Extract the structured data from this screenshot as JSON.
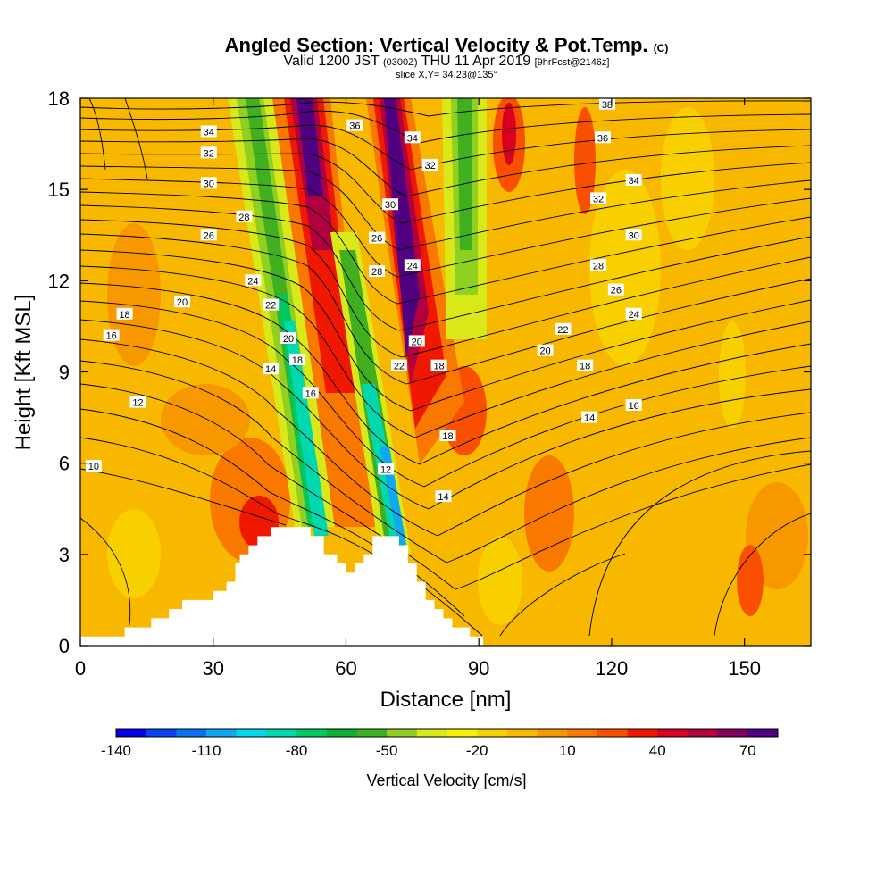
{
  "header": {
    "title_main": "Angled Section: Vertical Velocity & Pot.Temp.",
    "title_suffix": "(C)",
    "subtitle_a": "Valid 1200 JST",
    "subtitle_b": "(0300Z)",
    "subtitle_c": "THU 11 Apr 2019",
    "subtitle_d": "[9hrFcst@2146z]",
    "subtitle2": "slice X,Y= 34,23@135°"
  },
  "chart_data": {
    "type": "heatmap",
    "xlabel": "Distance [nm]",
    "ylabel": "Height [Kft MSL]",
    "xlim": [
      0,
      165
    ],
    "ylim": [
      0,
      18
    ],
    "x_ticks": [
      0,
      30,
      60,
      90,
      120,
      150
    ],
    "y_ticks": [
      0,
      3,
      6,
      9,
      12,
      15,
      18
    ],
    "colorbar": {
      "label": "Vertical Velocity [cm/s]",
      "tick_labels": [
        "-140",
        "-110",
        "-80",
        "-50",
        "-20",
        "10",
        "40",
        "70"
      ],
      "colors": [
        "#0000e8",
        "#0a40f0",
        "#0a70f5",
        "#10a8f0",
        "#00d8e8",
        "#00d8b0",
        "#00c860",
        "#10b030",
        "#40b020",
        "#90d020",
        "#d8e818",
        "#f8f000",
        "#f8d000",
        "#f8b800",
        "#f89800",
        "#f87800",
        "#f85000",
        "#f01800",
        "#d80020",
        "#b00040",
        "#800060",
        "#500080"
      ]
    },
    "contour_labels": [
      {
        "value": "34",
        "x": 29,
        "y": 16.9
      },
      {
        "value": "32",
        "x": 29,
        "y": 16.2
      },
      {
        "value": "30",
        "x": 29,
        "y": 15.2
      },
      {
        "value": "28",
        "x": 37,
        "y": 14.1
      },
      {
        "value": "26",
        "x": 29,
        "y": 13.5
      },
      {
        "value": "24",
        "x": 39,
        "y": 12.0
      },
      {
        "value": "22",
        "x": 43,
        "y": 11.2
      },
      {
        "value": "20",
        "x": 23,
        "y": 11.3
      },
      {
        "value": "18",
        "x": 10,
        "y": 10.9
      },
      {
        "value": "16",
        "x": 7,
        "y": 10.2
      },
      {
        "value": "14",
        "x": 43,
        "y": 9.1
      },
      {
        "value": "12",
        "x": 13,
        "y": 8.0
      },
      {
        "value": "10",
        "x": 3,
        "y": 5.9
      },
      {
        "value": "20",
        "x": 47,
        "y": 10.1
      },
      {
        "value": "18",
        "x": 49,
        "y": 9.4
      },
      {
        "value": "16",
        "x": 52,
        "y": 8.3
      },
      {
        "value": "36",
        "x": 62,
        "y": 17.1
      },
      {
        "value": "34",
        "x": 75,
        "y": 16.7
      },
      {
        "value": "32",
        "x": 79,
        "y": 15.8
      },
      {
        "value": "30",
        "x": 70,
        "y": 14.5
      },
      {
        "value": "26",
        "x": 67,
        "y": 13.4
      },
      {
        "value": "28",
        "x": 67,
        "y": 12.3
      },
      {
        "value": "24",
        "x": 75,
        "y": 12.5
      },
      {
        "value": "20",
        "x": 76,
        "y": 10.0
      },
      {
        "value": "22",
        "x": 72,
        "y": 9.2
      },
      {
        "value": "18",
        "x": 81,
        "y": 9.2
      },
      {
        "value": "12",
        "x": 69,
        "y": 5.8
      },
      {
        "value": "18",
        "x": 83,
        "y": 6.9
      },
      {
        "value": "14",
        "x": 82,
        "y": 4.9
      },
      {
        "value": "38",
        "x": 119,
        "y": 17.8
      },
      {
        "value": "36",
        "x": 118,
        "y": 16.7
      },
      {
        "value": "34",
        "x": 125,
        "y": 15.3
      },
      {
        "value": "32",
        "x": 117,
        "y": 14.7
      },
      {
        "value": "30",
        "x": 125,
        "y": 13.5
      },
      {
        "value": "28",
        "x": 117,
        "y": 12.5
      },
      {
        "value": "26",
        "x": 121,
        "y": 11.7
      },
      {
        "value": "24",
        "x": 125,
        "y": 10.9
      },
      {
        "value": "22",
        "x": 109,
        "y": 10.4
      },
      {
        "value": "20",
        "x": 105,
        "y": 9.7
      },
      {
        "value": "18",
        "x": 114,
        "y": 9.2
      },
      {
        "value": "16",
        "x": 125,
        "y": 7.9
      },
      {
        "value": "14",
        "x": 115,
        "y": 7.5
      }
    ],
    "terrain_profile": [
      [
        0,
        0.3
      ],
      [
        10,
        0.3
      ],
      [
        10,
        0.6
      ],
      [
        16,
        0.6
      ],
      [
        16,
        0.9
      ],
      [
        20,
        0.9
      ],
      [
        20,
        1.2
      ],
      [
        23,
        1.2
      ],
      [
        23,
        1.5
      ],
      [
        30,
        1.5
      ],
      [
        30,
        1.8
      ],
      [
        33,
        1.8
      ],
      [
        33,
        2.1
      ],
      [
        35,
        2.1
      ],
      [
        35,
        2.7
      ],
      [
        36,
        2.7
      ],
      [
        36,
        3.0
      ],
      [
        38,
        3.0
      ],
      [
        38,
        3.3
      ],
      [
        40,
        3.3
      ],
      [
        40,
        3.6
      ],
      [
        43,
        3.6
      ],
      [
        43,
        3.9
      ],
      [
        52,
        3.9
      ],
      [
        52,
        3.6
      ],
      [
        55,
        3.6
      ],
      [
        55,
        3.0
      ],
      [
        58,
        3.0
      ],
      [
        58,
        2.7
      ],
      [
        60,
        2.7
      ],
      [
        60,
        2.4
      ],
      [
        62,
        2.4
      ],
      [
        62,
        2.7
      ],
      [
        64,
        2.7
      ],
      [
        64,
        3.0
      ],
      [
        66,
        3.0
      ],
      [
        66,
        3.6
      ],
      [
        72,
        3.6
      ],
      [
        72,
        3.3
      ],
      [
        74,
        3.3
      ],
      [
        74,
        2.7
      ],
      [
        76,
        2.7
      ],
      [
        76,
        2.1
      ],
      [
        78,
        2.1
      ],
      [
        78,
        1.5
      ],
      [
        80,
        1.5
      ],
      [
        80,
        1.2
      ],
      [
        82,
        1.2
      ],
      [
        82,
        0.9
      ],
      [
        84,
        0.9
      ],
      [
        84,
        0.6
      ],
      [
        88,
        0.6
      ],
      [
        88,
        0.3
      ],
      [
        91,
        0.3
      ],
      [
        91,
        0
      ],
      [
        0,
        0
      ]
    ]
  }
}
